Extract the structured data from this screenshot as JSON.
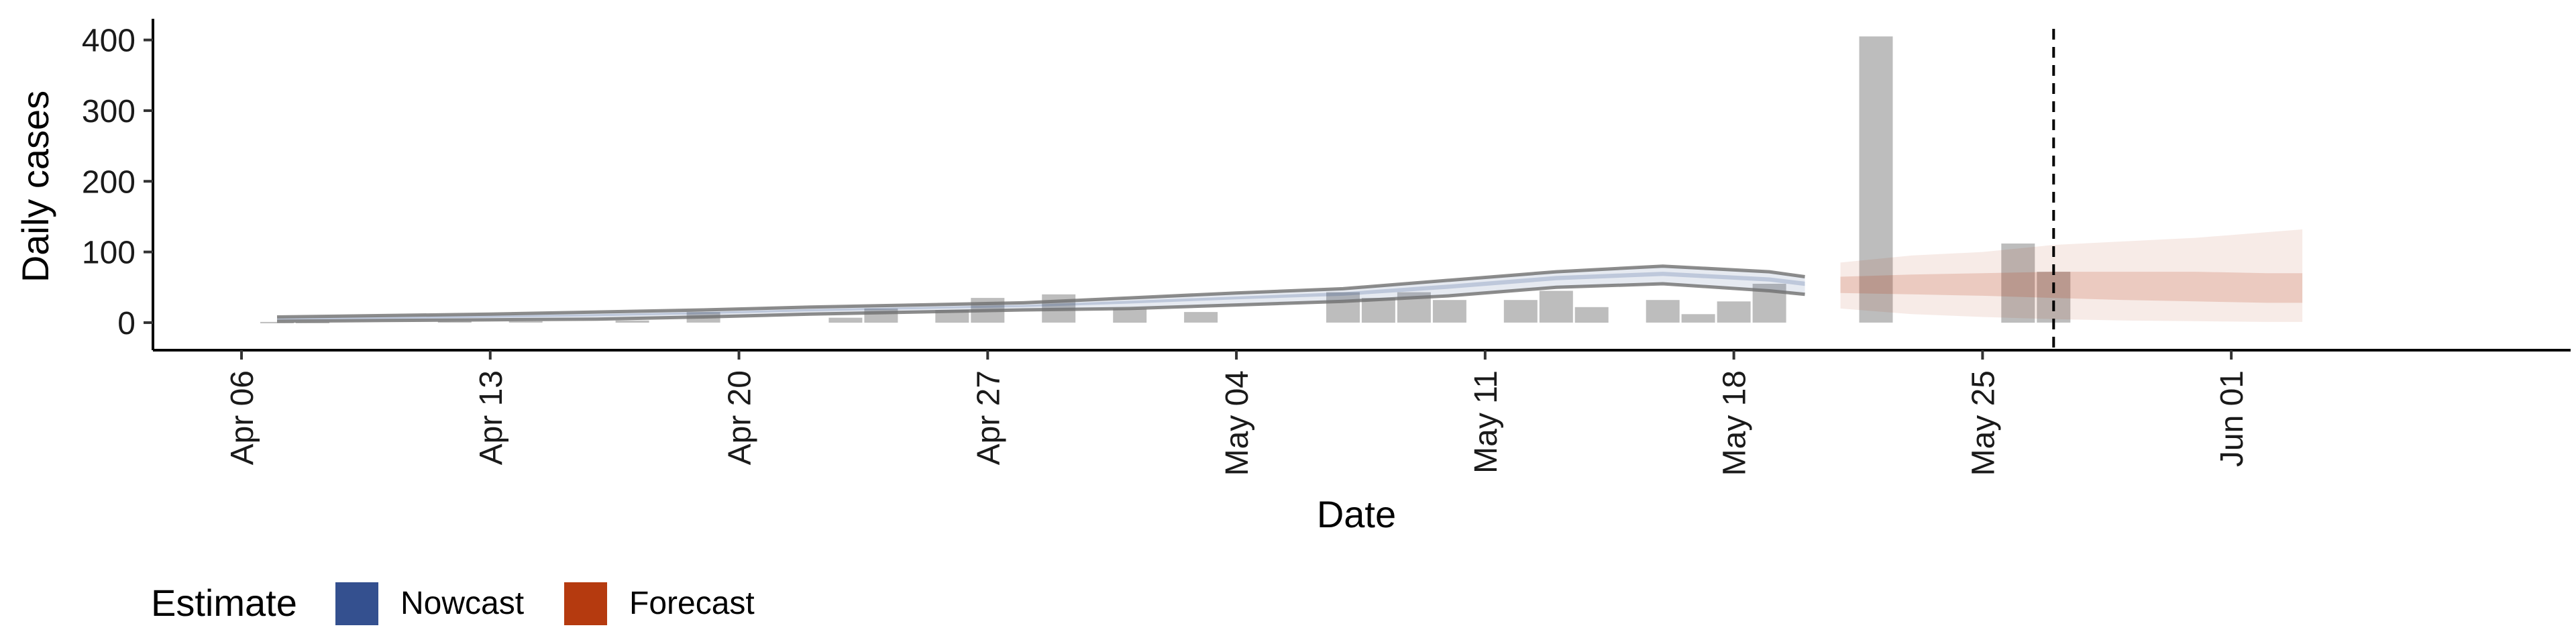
{
  "chart_data": {
    "type": "bar",
    "title": "",
    "xlabel": "Date",
    "ylabel": "Daily cases",
    "ylim": [
      -20,
      430
    ],
    "yticks": [
      0,
      100,
      200,
      300,
      400
    ],
    "xlim": [
      "2020-04-06",
      "2020-06-05"
    ],
    "xticks": [
      {
        "date": "2020-04-06",
        "label": "Apr 06"
      },
      {
        "date": "2020-04-13",
        "label": "Apr 13"
      },
      {
        "date": "2020-04-20",
        "label": "Apr 20"
      },
      {
        "date": "2020-04-27",
        "label": "Apr 27"
      },
      {
        "date": "2020-05-04",
        "label": "May 04"
      },
      {
        "date": "2020-05-11",
        "label": "May 11"
      },
      {
        "date": "2020-05-18",
        "label": "May 18"
      },
      {
        "date": "2020-05-25",
        "label": "May 25"
      },
      {
        "date": "2020-06-01",
        "label": "Jun 01"
      }
    ],
    "reference_line": {
      "date": "2020-05-27",
      "style": "dashed"
    },
    "bars": [
      {
        "date": "2020-04-07",
        "value": 1
      },
      {
        "date": "2020-04-08",
        "value": 1
      },
      {
        "date": "2020-04-12",
        "value": 2
      },
      {
        "date": "2020-04-14",
        "value": 2
      },
      {
        "date": "2020-04-17",
        "value": 3
      },
      {
        "date": "2020-04-19",
        "value": 15
      },
      {
        "date": "2020-04-23",
        "value": 7
      },
      {
        "date": "2020-04-24",
        "value": 20
      },
      {
        "date": "2020-04-26",
        "value": 18
      },
      {
        "date": "2020-04-27",
        "value": 35
      },
      {
        "date": "2020-04-29",
        "value": 40
      },
      {
        "date": "2020-05-01",
        "value": 20
      },
      {
        "date": "2020-05-03",
        "value": 15
      },
      {
        "date": "2020-05-07",
        "value": 43
      },
      {
        "date": "2020-05-08",
        "value": 35
      },
      {
        "date": "2020-05-09",
        "value": 43
      },
      {
        "date": "2020-05-10",
        "value": 32
      },
      {
        "date": "2020-05-12",
        "value": 32
      },
      {
        "date": "2020-05-13",
        "value": 45
      },
      {
        "date": "2020-05-14",
        "value": 22
      },
      {
        "date": "2020-05-16",
        "value": 32
      },
      {
        "date": "2020-05-17",
        "value": 12
      },
      {
        "date": "2020-05-18",
        "value": 30
      },
      {
        "date": "2020-05-19",
        "value": 55
      },
      {
        "date": "2020-05-22",
        "value": 405
      },
      {
        "date": "2020-05-26",
        "value": 112
      },
      {
        "date": "2020-05-27",
        "value": 72
      }
    ],
    "series": [
      {
        "name": "Nowcast",
        "color": "#34508f",
        "x": [
          "2020-04-07",
          "2020-04-10",
          "2020-04-13",
          "2020-04-16",
          "2020-04-19",
          "2020-04-22",
          "2020-04-25",
          "2020-04-28",
          "2020-05-01",
          "2020-05-04",
          "2020-05-07",
          "2020-05-10",
          "2020-05-13",
          "2020-05-16",
          "2020-05-19",
          "2020-05-20"
        ],
        "lower90": [
          2,
          3,
          4,
          5,
          8,
          12,
          15,
          18,
          20,
          25,
          30,
          38,
          50,
          55,
          45,
          40
        ],
        "upper90": [
          8,
          10,
          12,
          15,
          18,
          22,
          25,
          28,
          35,
          42,
          48,
          60,
          72,
          80,
          72,
          65
        ],
        "lower50": [
          4,
          5,
          7,
          9,
          12,
          16,
          19,
          22,
          27,
          33,
          38,
          48,
          60,
          66,
          58,
          52
        ],
        "upper50": [
          6,
          8,
          10,
          12,
          15,
          19,
          22,
          25,
          31,
          37,
          43,
          54,
          66,
          72,
          64,
          58
        ]
      },
      {
        "name": "Forecast",
        "color": "#b53a0f",
        "x": [
          "2020-05-21",
          "2020-05-23",
          "2020-05-25",
          "2020-05-27",
          "2020-05-29",
          "2020-05-31",
          "2020-06-02",
          "2020-06-03"
        ],
        "lower90": [
          20,
          12,
          8,
          5,
          3,
          2,
          1,
          1
        ],
        "upper90": [
          85,
          95,
          100,
          110,
          115,
          120,
          128,
          132
        ],
        "lower50": [
          42,
          40,
          38,
          35,
          32,
          30,
          28,
          28
        ],
        "upper50": [
          65,
          68,
          70,
          72,
          72,
          72,
          70,
          70
        ]
      }
    ],
    "legend": {
      "title": "Estimate",
      "placement": "bottom-left",
      "entries": [
        {
          "label": "Nowcast",
          "color": "#34508f"
        },
        {
          "label": "Forecast",
          "color": "#b53a0f"
        }
      ]
    },
    "bar_color": "#bdbdbd",
    "grid": false
  }
}
